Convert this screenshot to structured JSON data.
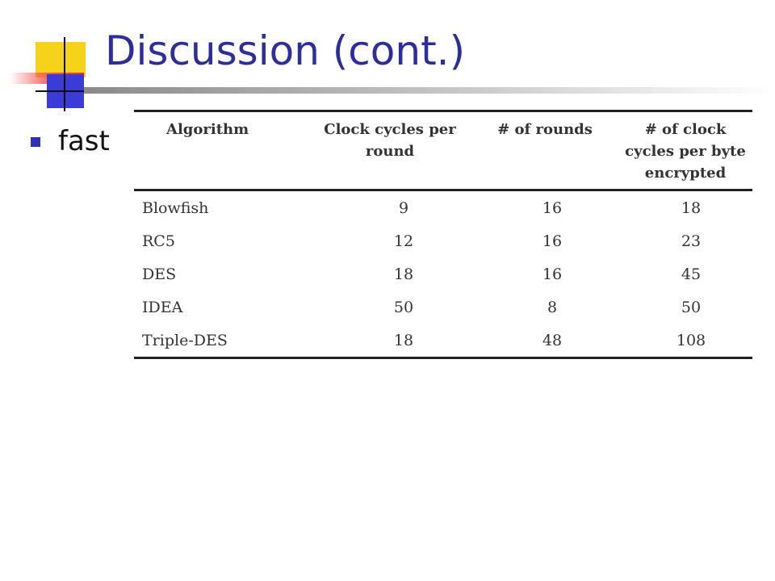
{
  "title": "Discussion (cont.)",
  "bullets": [
    "fast"
  ],
  "table": {
    "headers": [
      "Algorithm",
      "Clock cycles per round",
      "# of rounds",
      "# of clock cycles per byte encrypted"
    ],
    "rows": [
      [
        "Blowfish",
        "9",
        "16",
        "18"
      ],
      [
        "RC5",
        "12",
        "16",
        "23"
      ],
      [
        "DES",
        "18",
        "16",
        "45"
      ],
      [
        "IDEA",
        "50",
        "8",
        "50"
      ],
      [
        "Triple-DES",
        "18",
        "48",
        "108"
      ]
    ]
  },
  "colors": {
    "title": "#2e2e9a",
    "bullet": "#3030b8",
    "logo_yellow": "#f7d21a",
    "logo_red": "#e83030",
    "logo_blue": "#3b3bd6"
  }
}
